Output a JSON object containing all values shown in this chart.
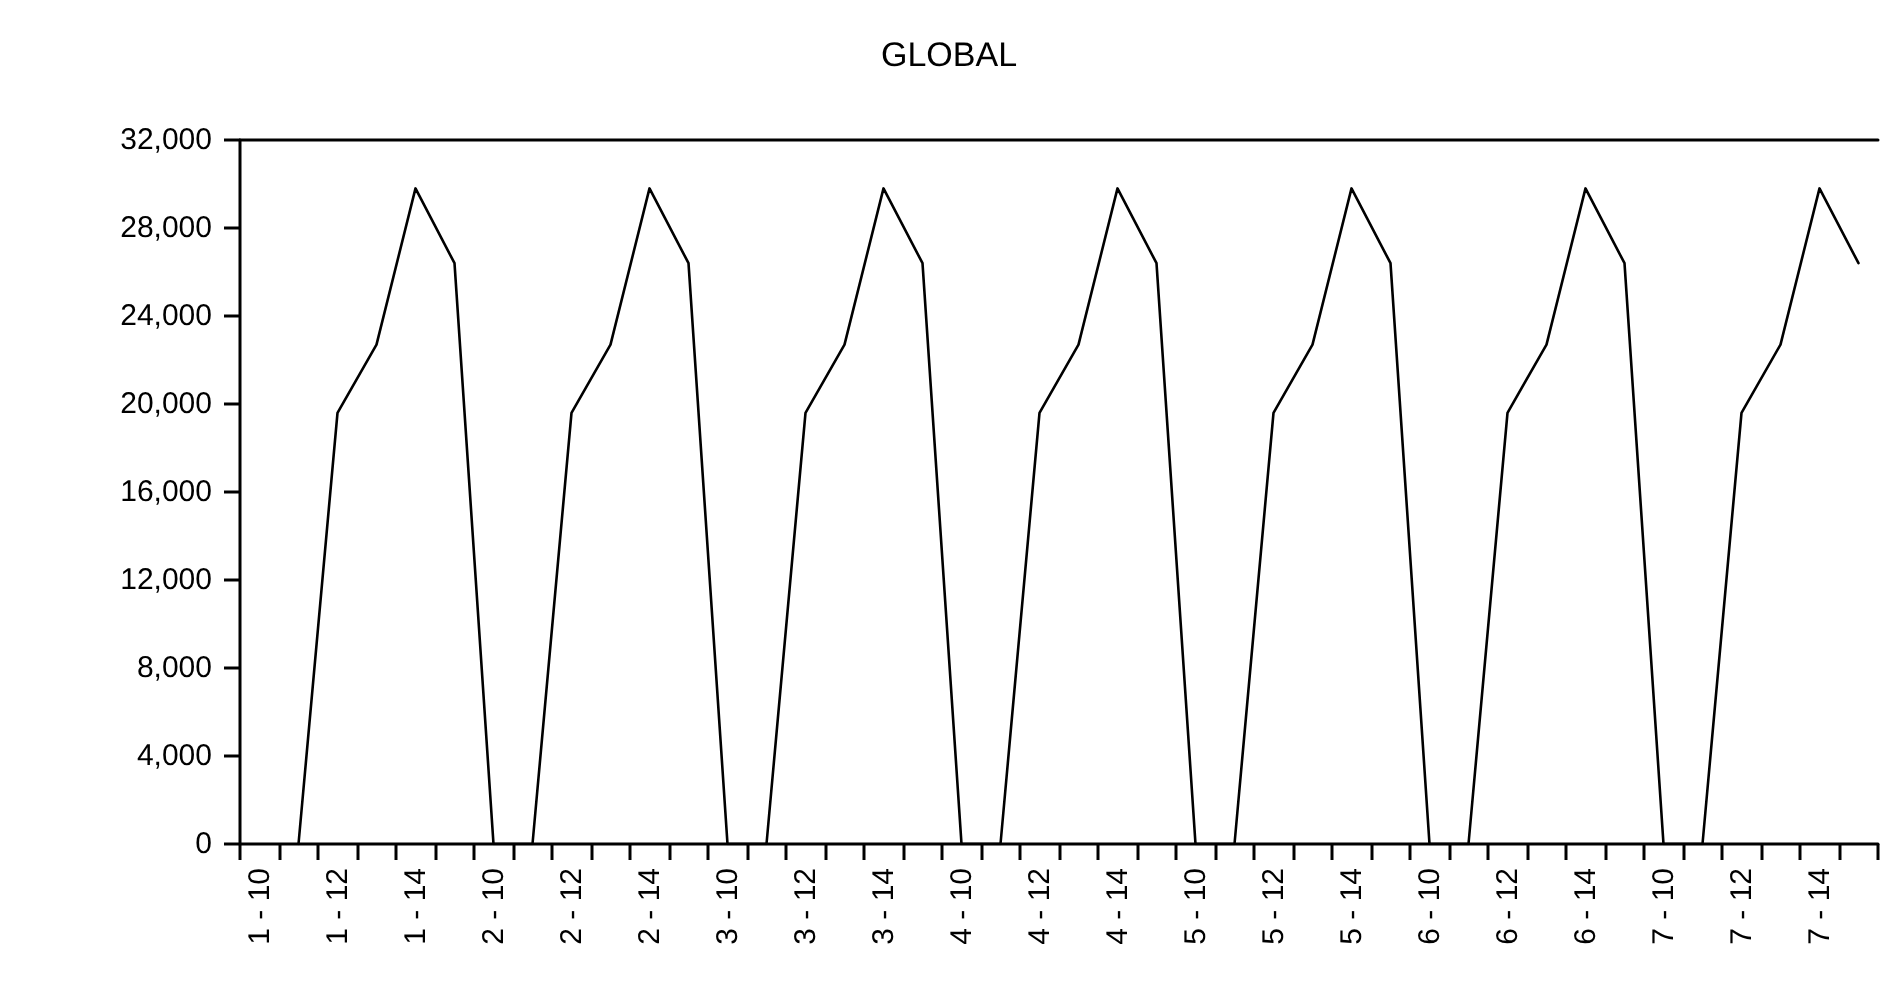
{
  "chart_data": {
    "type": "line",
    "title": "GLOBAL",
    "categories": [
      "1 - 10",
      null,
      "1 - 12",
      null,
      "1 - 14",
      null,
      "2 - 10",
      null,
      "2 - 12",
      null,
      "2 - 14",
      null,
      "3 - 10",
      null,
      "3 - 12",
      null,
      "3 - 14",
      null,
      "4 - 10",
      null,
      "4 - 12",
      null,
      "4 - 14",
      null,
      "5 - 10",
      null,
      "5 - 12",
      null,
      "5 - 14",
      null,
      "6 - 10",
      null,
      "6 - 12",
      null,
      "6 - 14",
      null,
      "7 - 10",
      null,
      "7 - 12",
      null,
      "7 - 14",
      null
    ],
    "series": [
      {
        "color": "#000000",
        "values": [
          null,
          0,
          19600,
          22700,
          29800,
          26400,
          0,
          0,
          19600,
          22700,
          29800,
          26400,
          0,
          0,
          19600,
          22700,
          29800,
          26400,
          0,
          0,
          19600,
          22700,
          29800,
          26400,
          0,
          0,
          19600,
          22700,
          29800,
          26400,
          0,
          0,
          19600,
          22700,
          29800,
          26400,
          0,
          0,
          19600,
          22700,
          29800,
          26400
        ]
      }
    ],
    "ylim": [
      0,
      32000
    ],
    "yticks": [
      0,
      {
        "value": 4000,
        "label": "4,000"
      },
      {
        "value": 8000,
        "label": "8,000"
      },
      {
        "value": 12000,
        "label": "12,000"
      },
      {
        "value": 16000,
        "label": "16,000"
      },
      {
        "value": 20000,
        "label": "20,000"
      },
      {
        "value": 24000,
        "label": "24,000"
      },
      {
        "value": 28000,
        "label": "28,000"
      },
      {
        "value": 32000,
        "label": "32,000"
      }
    ],
    "grid": false,
    "marker": "none",
    "line_style": "solid"
  }
}
